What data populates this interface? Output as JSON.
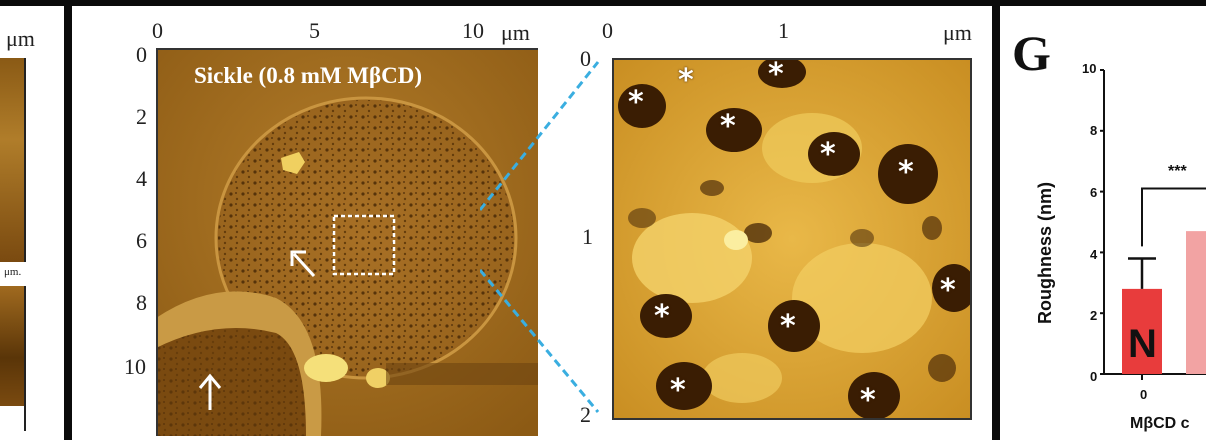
{
  "left_fragment": {
    "unit_top": "μm",
    "unit_small": "μm."
  },
  "afm_overview": {
    "title": "Sickle (0.8 mM MβCD)",
    "x_ticks": [
      "0",
      "5",
      "10"
    ],
    "x_unit": "μm",
    "y_ticks": [
      "0",
      "2",
      "4",
      "6",
      "8",
      "10"
    ]
  },
  "afm_zoom": {
    "x_ticks": [
      "0",
      "1"
    ],
    "x_unit": "μm",
    "y_ticks": [
      "0",
      "1",
      "2"
    ],
    "marker": "*"
  },
  "panel_g": {
    "letter": "G",
    "ylabel": "Roughness (nm)",
    "xlabel": "MβCD c",
    "y_ticks": [
      "10",
      "8",
      "6",
      "4",
      "2",
      "0"
    ],
    "x_ticks": [
      "0"
    ],
    "significance": "***",
    "bar_label": "N"
  },
  "chart_data": {
    "type": "bar",
    "categories": [
      "0",
      ""
    ],
    "series": [
      {
        "values": [
          2.8,
          4.7
        ]
      }
    ],
    "error_upper": [
      3.8,
      null
    ],
    "ylabel": "Roughness (nm)",
    "xlabel": "MβCD c",
    "ylim": [
      0,
      10
    ],
    "annotations": [
      "***",
      "N"
    ],
    "colors": [
      "#e83c3c",
      "#f2a3a3"
    ]
  }
}
